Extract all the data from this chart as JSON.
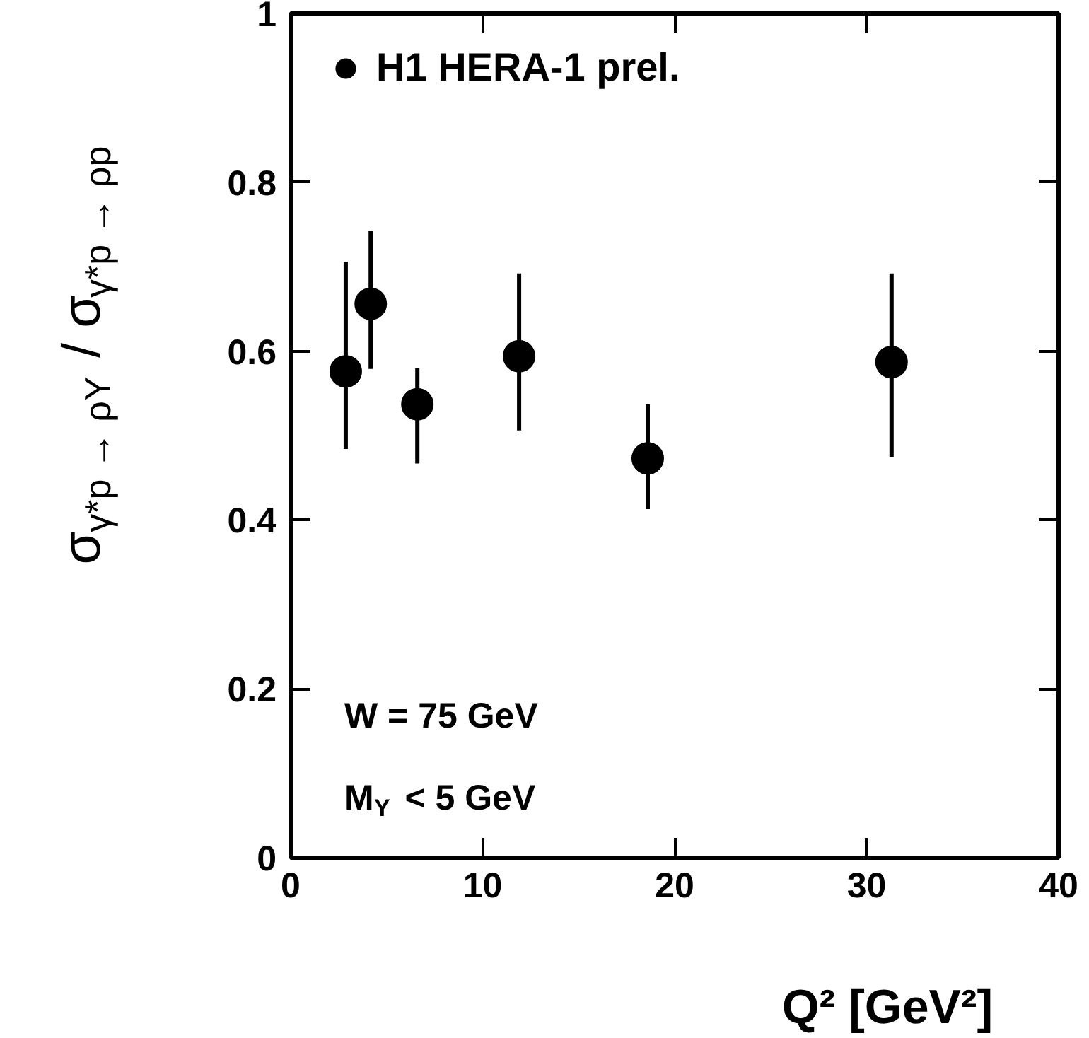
{
  "chart_data": {
    "type": "scatter",
    "xlabel": "Q² [GeV²]",
    "ylabel": "σ$_{γ*p → ρY}$ / σ$_{γ*p → ρp}$",
    "x": [
      2.87,
      4.17,
      6.6,
      11.9,
      18.6,
      31.3
    ],
    "series": [
      {
        "name": "H1 HERA-1 prel.",
        "color": "#000000",
        "values": [
          0.576,
          0.656,
          0.537,
          0.594,
          0.473,
          0.587
        ],
        "errors": [
          [
            0.484,
            0.706
          ],
          [
            0.579,
            0.742
          ],
          [
            0.467,
            0.58
          ],
          [
            0.506,
            0.692
          ],
          [
            0.413,
            0.537
          ],
          [
            0.474,
            0.692
          ]
        ]
      }
    ],
    "annotations": [
      "W = 75 GeV",
      "M$_{Y}$ < 5 GeV"
    ],
    "xlim": [
      0,
      40
    ],
    "xticks": [
      0,
      10,
      20,
      30,
      40
    ],
    "ylim": [
      0,
      1
    ],
    "yticks": [
      0,
      0.2,
      0.4,
      0.6,
      0.8,
      1
    ],
    "grid": false,
    "legend": "top left",
    "marker": "circle"
  }
}
